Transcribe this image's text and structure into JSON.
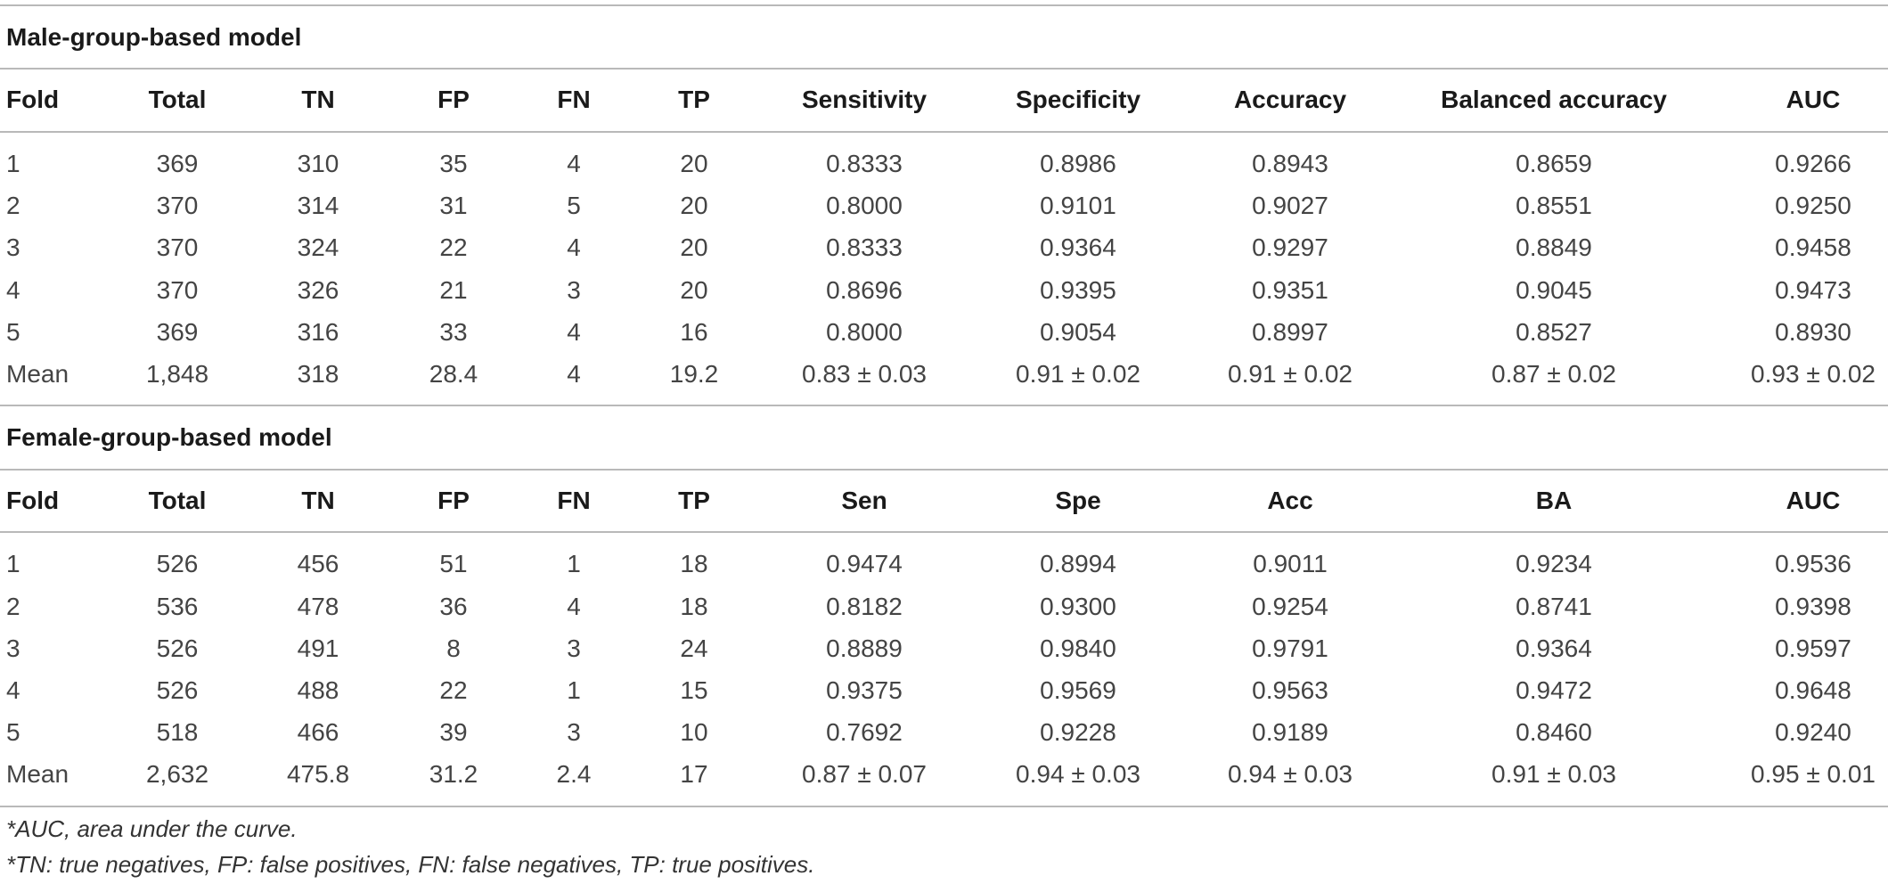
{
  "sections": [
    {
      "title": "Male-group-based model",
      "headers": [
        "Fold",
        "Total",
        "TN",
        "FP",
        "FN",
        "TP",
        "Sensitivity",
        "Specificity",
        "Accuracy",
        "Balanced accuracy",
        "AUC"
      ],
      "rows": [
        [
          "1",
          "369",
          "310",
          "35",
          "4",
          "20",
          "0.8333",
          "0.8986",
          "0.8943",
          "0.8659",
          "0.9266"
        ],
        [
          "2",
          "370",
          "314",
          "31",
          "5",
          "20",
          "0.8000",
          "0.9101",
          "0.9027",
          "0.8551",
          "0.9250"
        ],
        [
          "3",
          "370",
          "324",
          "22",
          "4",
          "20",
          "0.8333",
          "0.9364",
          "0.9297",
          "0.8849",
          "0.9458"
        ],
        [
          "4",
          "370",
          "326",
          "21",
          "3",
          "20",
          "0.8696",
          "0.9395",
          "0.9351",
          "0.9045",
          "0.9473"
        ],
        [
          "5",
          "369",
          "316",
          "33",
          "4",
          "16",
          "0.8000",
          "0.9054",
          "0.8997",
          "0.8527",
          "0.8930"
        ],
        [
          "Mean",
          "1,848",
          "318",
          "28.4",
          "4",
          "19.2",
          "0.83 ± 0.03",
          "0.91 ± 0.02",
          "0.91 ± 0.02",
          "0.87 ± 0.02",
          "0.93 ± 0.02"
        ]
      ]
    },
    {
      "title": "Female-group-based model",
      "headers": [
        "Fold",
        "Total",
        "TN",
        "FP",
        "FN",
        "TP",
        "Sen",
        "Spe",
        "Acc",
        "BA",
        "AUC"
      ],
      "rows": [
        [
          "1",
          "526",
          "456",
          "51",
          "1",
          "18",
          "0.9474",
          "0.8994",
          "0.9011",
          "0.9234",
          "0.9536"
        ],
        [
          "2",
          "536",
          "478",
          "36",
          "4",
          "18",
          "0.8182",
          "0.9300",
          "0.9254",
          "0.8741",
          "0.9398"
        ],
        [
          "3",
          "526",
          "491",
          "8",
          "3",
          "24",
          "0.8889",
          "0.9840",
          "0.9791",
          "0.9364",
          "0.9597"
        ],
        [
          "4",
          "526",
          "488",
          "22",
          "1",
          "15",
          "0.9375",
          "0.9569",
          "0.9563",
          "0.9472",
          "0.9648"
        ],
        [
          "5",
          "518",
          "466",
          "39",
          "3",
          "10",
          "0.7692",
          "0.9228",
          "0.9189",
          "0.8460",
          "0.9240"
        ],
        [
          "Mean",
          "2,632",
          "475.8",
          "31.2",
          "2.4",
          "17",
          "0.87 ± 0.07",
          "0.94 ± 0.03",
          "0.94 ± 0.03",
          "0.91 ± 0.03",
          "0.95 ± 0.01"
        ]
      ]
    }
  ],
  "footnotes": [
    "*AUC, area under the curve.",
    "*TN: true negatives, FP: false positives, FN: false negatives, TP: true positives."
  ]
}
